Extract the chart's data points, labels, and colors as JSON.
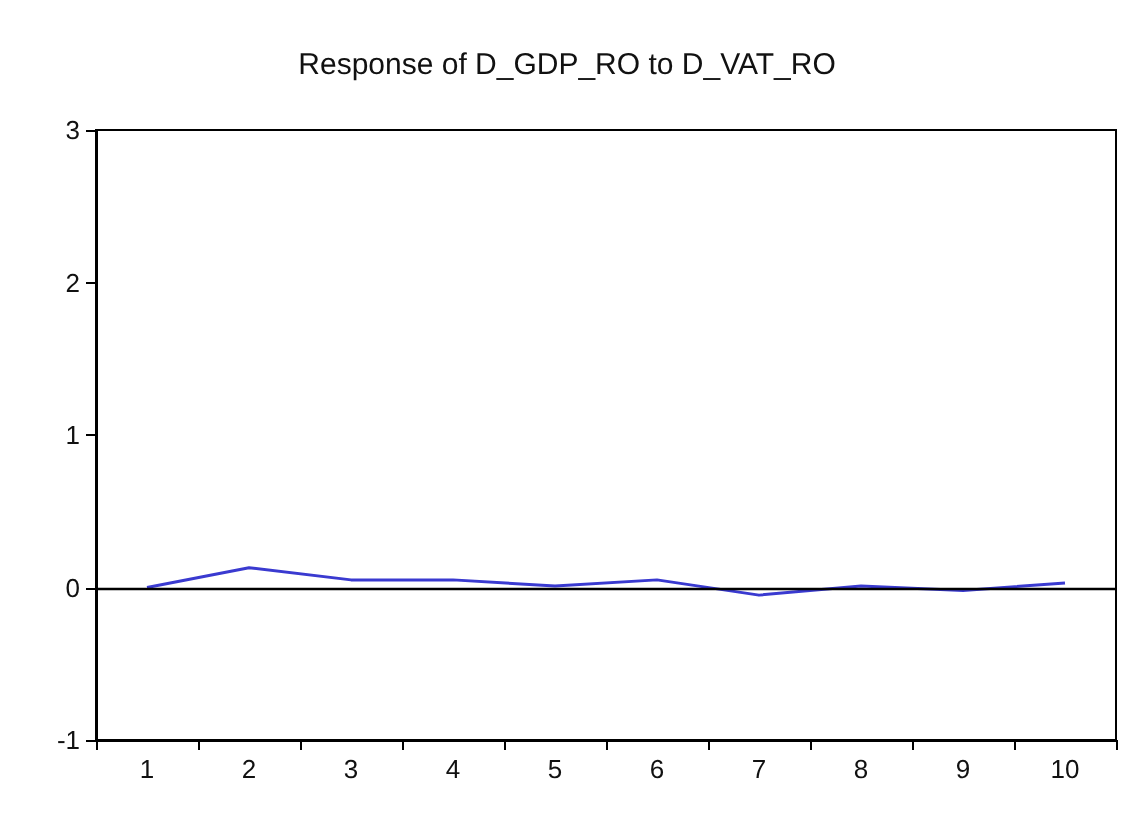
{
  "chart_data": {
    "type": "line",
    "title": "Response of D_GDP_RO to D_VAT_RO",
    "categories": [
      "1",
      "2",
      "3",
      "4",
      "5",
      "6",
      "7",
      "8",
      "9",
      "10"
    ],
    "series": [
      {
        "color": "#3a3ad0",
        "values": [
          0,
          0.13,
          0.05,
          0.05,
          0.01,
          0.05,
          -0.05,
          0.01,
          -0.02,
          0.03
        ]
      }
    ],
    "ylim": [
      -1,
      3
    ],
    "yticks": [
      -1,
      0,
      1,
      2,
      3
    ],
    "grid": false,
    "marker": "none",
    "line_style": "solid",
    "ref_lines": [
      {
        "axis": "y",
        "value": 0,
        "color": "#000000"
      }
    ]
  }
}
